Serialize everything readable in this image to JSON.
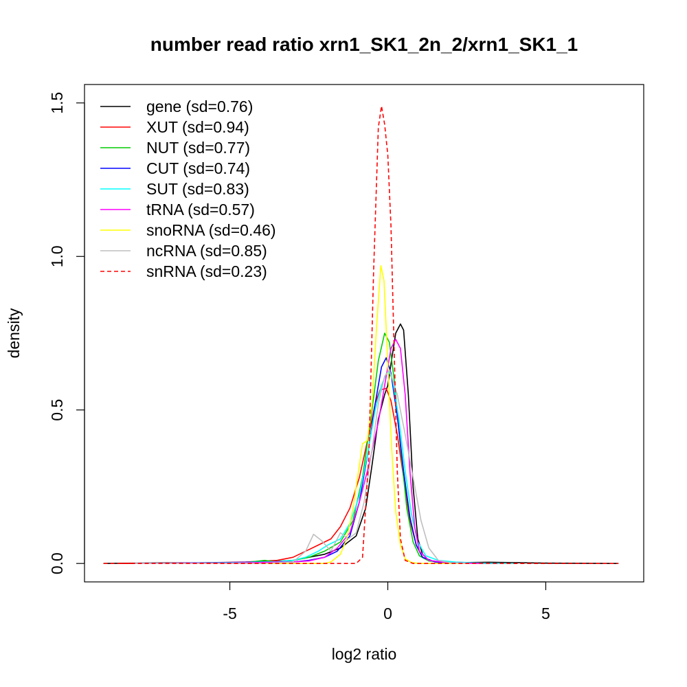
{
  "chart_data": {
    "type": "line",
    "title": "number read ratio xrn1_SK1_2n_2/xrn1_SK1_1",
    "xlabel": "log2 ratio",
    "ylabel": "density",
    "xlim": [
      -9.6,
      8.1
    ],
    "ylim": [
      -0.06,
      1.56
    ],
    "x_ticks": [
      -5,
      0,
      5
    ],
    "x_tick_labels": [
      "-5",
      "0",
      "5"
    ],
    "y_ticks": [
      0.0,
      0.5,
      1.0,
      1.5
    ],
    "y_tick_labels": [
      "0.0",
      "0.5",
      "1.0",
      "1.5"
    ],
    "legend_position": "top-left",
    "grid": false,
    "series": [
      {
        "name": "gene (sd=0.76)",
        "color": "#000000",
        "dash": "solid",
        "points": [
          [
            -9.0,
            0
          ],
          [
            -7,
            0.002
          ],
          [
            -5,
            0.002
          ],
          [
            -4,
            0.004
          ],
          [
            -3,
            0.01
          ],
          [
            -2.5,
            0.02
          ],
          [
            -2,
            0.03
          ],
          [
            -1.5,
            0.05
          ],
          [
            -1.0,
            0.09
          ],
          [
            -0.7,
            0.18
          ],
          [
            -0.5,
            0.32
          ],
          [
            -0.3,
            0.47
          ],
          [
            -0.1,
            0.55
          ],
          [
            0.0,
            0.58
          ],
          [
            0.1,
            0.65
          ],
          [
            0.25,
            0.75
          ],
          [
            0.4,
            0.78
          ],
          [
            0.5,
            0.76
          ],
          [
            0.65,
            0.55
          ],
          [
            0.8,
            0.25
          ],
          [
            0.95,
            0.08
          ],
          [
            1.1,
            0.03
          ],
          [
            1.3,
            0.01
          ],
          [
            1.6,
            0.005
          ],
          [
            2.5,
            0.003
          ],
          [
            3.2,
            0.004
          ],
          [
            5,
            0.001
          ],
          [
            7.3,
            0
          ]
        ]
      },
      {
        "name": "XUT (sd=0.94)",
        "color": "#ff0000",
        "dash": "solid",
        "points": [
          [
            -8.5,
            0
          ],
          [
            -6,
            0.002
          ],
          [
            -4.5,
            0.005
          ],
          [
            -3.5,
            0.01
          ],
          [
            -3,
            0.02
          ],
          [
            -2.6,
            0.04
          ],
          [
            -2.2,
            0.06
          ],
          [
            -1.8,
            0.08
          ],
          [
            -1.5,
            0.12
          ],
          [
            -1.2,
            0.18
          ],
          [
            -0.9,
            0.28
          ],
          [
            -0.6,
            0.42
          ],
          [
            -0.4,
            0.52
          ],
          [
            -0.25,
            0.565
          ],
          [
            -0.05,
            0.57
          ],
          [
            0.1,
            0.53
          ],
          [
            0.3,
            0.42
          ],
          [
            0.5,
            0.28
          ],
          [
            0.7,
            0.14
          ],
          [
            0.9,
            0.06
          ],
          [
            1.1,
            0.02
          ],
          [
            1.5,
            0.005
          ],
          [
            2.5,
            0.002
          ],
          [
            4,
            0
          ]
        ]
      },
      {
        "name": "NUT (sd=0.77)",
        "color": "#00cc00",
        "dash": "solid",
        "points": [
          [
            -8,
            0
          ],
          [
            -6,
            0.001
          ],
          [
            -4.5,
            0.003
          ],
          [
            -3.9,
            0.01
          ],
          [
            -3.5,
            0.005
          ],
          [
            -3,
            0.01
          ],
          [
            -2.5,
            0.02
          ],
          [
            -2,
            0.04
          ],
          [
            -1.5,
            0.07
          ],
          [
            -1.1,
            0.14
          ],
          [
            -0.8,
            0.28
          ],
          [
            -0.5,
            0.5
          ],
          [
            -0.3,
            0.66
          ],
          [
            -0.1,
            0.75
          ],
          [
            0.05,
            0.72
          ],
          [
            0.2,
            0.6
          ],
          [
            0.4,
            0.38
          ],
          [
            0.6,
            0.18
          ],
          [
            0.8,
            0.07
          ],
          [
            1.0,
            0.025
          ],
          [
            1.3,
            0.008
          ],
          [
            2,
            0.002
          ],
          [
            3.5,
            0
          ]
        ]
      },
      {
        "name": "CUT (sd=0.74)",
        "color": "#0000ff",
        "dash": "solid",
        "points": [
          [
            -8,
            0
          ],
          [
            -6,
            0.002
          ],
          [
            -4.5,
            0.004
          ],
          [
            -3.5,
            0.006
          ],
          [
            -3,
            0.005
          ],
          [
            -2.5,
            0.01
          ],
          [
            -2,
            0.02
          ],
          [
            -1.6,
            0.04
          ],
          [
            -1.2,
            0.09
          ],
          [
            -0.9,
            0.2
          ],
          [
            -0.6,
            0.38
          ],
          [
            -0.4,
            0.52
          ],
          [
            -0.2,
            0.64
          ],
          [
            -0.05,
            0.67
          ],
          [
            0.1,
            0.62
          ],
          [
            0.3,
            0.48
          ],
          [
            0.5,
            0.3
          ],
          [
            0.7,
            0.15
          ],
          [
            0.9,
            0.06
          ],
          [
            1.1,
            0.02
          ],
          [
            1.5,
            0.005
          ],
          [
            2.5,
            0.001
          ],
          [
            3.5,
            0
          ]
        ]
      },
      {
        "name": "SUT (sd=0.83)",
        "color": "#00ffff",
        "dash": "solid",
        "points": [
          [
            -8,
            0
          ],
          [
            -6,
            0.001
          ],
          [
            -4.5,
            0.003
          ],
          [
            -3.5,
            0.006
          ],
          [
            -3,
            0.01
          ],
          [
            -2.6,
            0.02
          ],
          [
            -2.2,
            0.04
          ],
          [
            -1.9,
            0.06
          ],
          [
            -1.5,
            0.08
          ],
          [
            -1.2,
            0.13
          ],
          [
            -0.9,
            0.22
          ],
          [
            -0.6,
            0.38
          ],
          [
            -0.4,
            0.5
          ],
          [
            -0.2,
            0.58
          ],
          [
            0.0,
            0.63
          ],
          [
            0.15,
            0.6
          ],
          [
            0.35,
            0.47
          ],
          [
            0.55,
            0.3
          ],
          [
            0.75,
            0.16
          ],
          [
            0.95,
            0.07
          ],
          [
            1.2,
            0.025
          ],
          [
            1.6,
            0.01
          ],
          [
            2.2,
            0.004
          ],
          [
            3,
            0.001
          ],
          [
            4,
            0
          ]
        ]
      },
      {
        "name": "tRNA (sd=0.57)",
        "color": "#ff00ff",
        "dash": "solid",
        "points": [
          [
            -8,
            0
          ],
          [
            -5,
            0.001
          ],
          [
            -4,
            0.003
          ],
          [
            -3.5,
            0.005
          ],
          [
            -3,
            0.005
          ],
          [
            -2.5,
            0.008
          ],
          [
            -2,
            0.02
          ],
          [
            -1.6,
            0.05
          ],
          [
            -1.2,
            0.1
          ],
          [
            -0.9,
            0.2
          ],
          [
            -0.6,
            0.32
          ],
          [
            -0.3,
            0.46
          ],
          [
            -0.1,
            0.58
          ],
          [
            0.1,
            0.7
          ],
          [
            0.25,
            0.73
          ],
          [
            0.4,
            0.7
          ],
          [
            0.55,
            0.55
          ],
          [
            0.7,
            0.3
          ],
          [
            0.85,
            0.12
          ],
          [
            1.0,
            0.04
          ],
          [
            1.3,
            0.01
          ],
          [
            2,
            0.002
          ],
          [
            3,
            0
          ]
        ]
      },
      {
        "name": "snoRNA (sd=0.46)",
        "color": "#ffff00",
        "dash": "solid",
        "points": [
          [
            -6,
            0
          ],
          [
            -4,
            0
          ],
          [
            -2,
            0
          ],
          [
            -1.8,
            0.005
          ],
          [
            -1.5,
            0.03
          ],
          [
            -1.3,
            0.08
          ],
          [
            -1.1,
            0.18
          ],
          [
            -0.9,
            0.32
          ],
          [
            -0.8,
            0.39
          ],
          [
            -0.65,
            0.4
          ],
          [
            -0.5,
            0.52
          ],
          [
            -0.35,
            0.78
          ],
          [
            -0.22,
            0.97
          ],
          [
            -0.12,
            0.92
          ],
          [
            0.0,
            0.65
          ],
          [
            0.12,
            0.38
          ],
          [
            0.25,
            0.17
          ],
          [
            0.4,
            0.06
          ],
          [
            0.55,
            0.015
          ],
          [
            0.75,
            0.003
          ],
          [
            1.0,
            0
          ],
          [
            2.5,
            0
          ]
        ]
      },
      {
        "name": "ncRNA (sd=0.85)",
        "color": "#bebebe",
        "dash": "solid",
        "points": [
          [
            -8,
            0
          ],
          [
            -4,
            0
          ],
          [
            -3,
            0.005
          ],
          [
            -2.6,
            0.04
          ],
          [
            -2.35,
            0.095
          ],
          [
            -2.1,
            0.075
          ],
          [
            -1.8,
            0.04
          ],
          [
            -1.5,
            0.1
          ],
          [
            -1.25,
            0.08
          ],
          [
            -1.0,
            0.1
          ],
          [
            -0.75,
            0.2
          ],
          [
            -0.5,
            0.37
          ],
          [
            -0.3,
            0.52
          ],
          [
            -0.1,
            0.61
          ],
          [
            0.05,
            0.63
          ],
          [
            0.3,
            0.55
          ],
          [
            0.55,
            0.42
          ],
          [
            0.8,
            0.28
          ],
          [
            1.05,
            0.14
          ],
          [
            1.3,
            0.05
          ],
          [
            1.6,
            0.01
          ],
          [
            2,
            0.002
          ],
          [
            2.6,
            0
          ]
        ]
      },
      {
        "name": "snRNA (sd=0.23)",
        "color": "#ff0000",
        "dash": "dashed",
        "points": [
          [
            -9.0,
            0
          ],
          [
            -2.0,
            0
          ],
          [
            -1.0,
            0
          ],
          [
            -0.8,
            0.02
          ],
          [
            -0.6,
            0.35
          ],
          [
            -0.45,
            0.95
          ],
          [
            -0.3,
            1.42
          ],
          [
            -0.2,
            1.49
          ],
          [
            -0.1,
            1.43
          ],
          [
            0.0,
            1.33
          ],
          [
            0.1,
            1.1
          ],
          [
            0.2,
            0.7
          ],
          [
            0.3,
            0.3
          ],
          [
            0.4,
            0.08
          ],
          [
            0.55,
            0.01
          ],
          [
            0.8,
            0
          ],
          [
            3,
            0
          ],
          [
            7.3,
            0
          ]
        ]
      }
    ]
  }
}
